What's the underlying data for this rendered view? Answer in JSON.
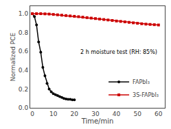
{
  "chart_data": {
    "type": "line",
    "xlabel": "Time/min",
    "ylabel": "Normalized PCE",
    "xlim": [
      -1,
      63
    ],
    "ylim": [
      0,
      1.08
    ],
    "xticks": [
      0,
      10,
      20,
      30,
      40,
      50,
      60
    ],
    "yticks": [
      {
        "value": 0.0,
        "label": "0.0"
      },
      0.2,
      0.4,
      0.6,
      0.8,
      {
        "value": 1.0,
        "label": "1.0"
      }
    ],
    "grid": false,
    "legend": "lower right",
    "annotations": [
      "2 h moisture test (RH: 85%)"
    ],
    "series": [
      {
        "name": "FAPbI₃",
        "color": "#000000",
        "marker": "circle",
        "line_style": "solid",
        "x": [
          0,
          1,
          2,
          3,
          4,
          5,
          6,
          7,
          8,
          9,
          10,
          11,
          12,
          13,
          14,
          15,
          16,
          17,
          18,
          19,
          20
        ],
        "values": [
          1.0,
          0.97,
          0.88,
          0.7,
          0.59,
          0.43,
          0.34,
          0.26,
          0.2,
          0.17,
          0.15,
          0.14,
          0.13,
          0.12,
          0.11,
          0.1,
          0.095,
          0.09,
          0.09,
          0.085,
          0.085
        ]
      },
      {
        "name": "3S-FAPbI₃",
        "color": "#cc0000",
        "marker": "square",
        "line_style": "solid",
        "x": [
          0,
          2,
          4,
          6,
          8,
          10,
          12,
          14,
          16,
          18,
          20,
          22,
          24,
          26,
          28,
          30,
          32,
          34,
          36,
          38,
          40,
          42,
          44,
          46,
          48,
          50,
          52,
          54,
          56,
          58,
          60
        ],
        "values": [
          1.0,
          1.0,
          1.0,
          0.998,
          0.996,
          0.992,
          0.988,
          0.984,
          0.98,
          0.976,
          0.972,
          0.968,
          0.963,
          0.958,
          0.953,
          0.948,
          0.943,
          0.938,
          0.933,
          0.928,
          0.922,
          0.918,
          0.913,
          0.908,
          0.903,
          0.898,
          0.893,
          0.889,
          0.886,
          0.883,
          0.88
        ]
      }
    ]
  }
}
